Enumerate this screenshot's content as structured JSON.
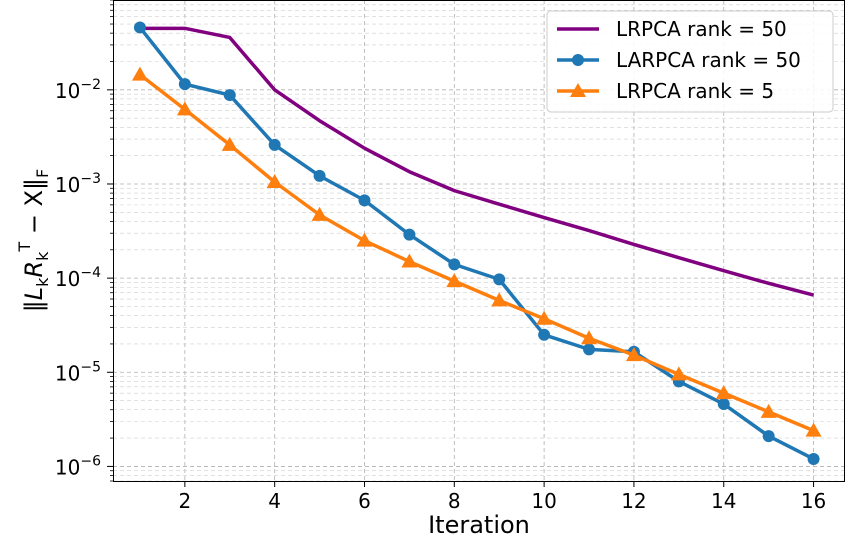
{
  "chart_data": {
    "type": "line",
    "title": "",
    "xlabel": "Iteration",
    "ylabel": "‖L_k R_k^T − X‖_F",
    "yscale": "log",
    "xlim": [
      0.4,
      16.7
    ],
    "ylim": [
      7e-07,
      0.09
    ],
    "x_ticks": [
      2,
      4,
      6,
      8,
      10,
      12,
      14,
      16
    ],
    "y_ticks": [
      {
        "value": 1e-06,
        "base": "10",
        "exp": "−6"
      },
      {
        "value": 1e-05,
        "base": "10",
        "exp": "−5"
      },
      {
        "value": 0.0001,
        "base": "10",
        "exp": "−4"
      },
      {
        "value": 0.001,
        "base": "10",
        "exp": "−3"
      },
      {
        "value": 0.01,
        "base": "10",
        "exp": "−2"
      }
    ],
    "grid": true,
    "legend_position": "top-right",
    "series": [
      {
        "name": "LRPCA rank = 50",
        "color": "#800080",
        "marker": "none",
        "x": [
          1,
          2,
          3,
          4,
          5,
          6,
          7,
          8,
          9,
          10,
          11,
          12,
          13,
          14,
          15,
          16
        ],
        "values": [
          0.045,
          0.045,
          0.036,
          0.01,
          0.0047,
          0.0024,
          0.00135,
          0.00085,
          0.00061,
          0.00044,
          0.00032,
          0.000228,
          0.000165,
          0.00012,
          8.8e-05,
          6.6e-05
        ]
      },
      {
        "name": "LARPCA rank = 50",
        "color": "#1f77b4",
        "marker": "circle",
        "x": [
          1,
          2,
          3,
          4,
          5,
          6,
          7,
          8,
          9,
          10,
          11,
          12,
          13,
          14,
          15,
          16
        ],
        "values": [
          0.046,
          0.0115,
          0.0088,
          0.0026,
          0.00122,
          0.00067,
          0.00029,
          0.00014,
          9.7e-05,
          2.5e-05,
          1.75e-05,
          1.65e-05,
          8e-06,
          4.6e-06,
          2.1e-06,
          1.2e-06
        ]
      },
      {
        "name": "LRPCA rank = 5",
        "color": "#ff7f0e",
        "marker": "triangle",
        "x": [
          1,
          2,
          3,
          4,
          5,
          6,
          7,
          8,
          9,
          10,
          11,
          12,
          13,
          14,
          15,
          16
        ],
        "values": [
          0.0145,
          0.0062,
          0.0026,
          0.00105,
          0.00047,
          0.00025,
          0.00015,
          9.3e-05,
          5.8e-05,
          3.7e-05,
          2.3e-05,
          1.52e-05,
          9.5e-06,
          6e-06,
          3.8e-06,
          2.4e-06
        ]
      }
    ]
  }
}
